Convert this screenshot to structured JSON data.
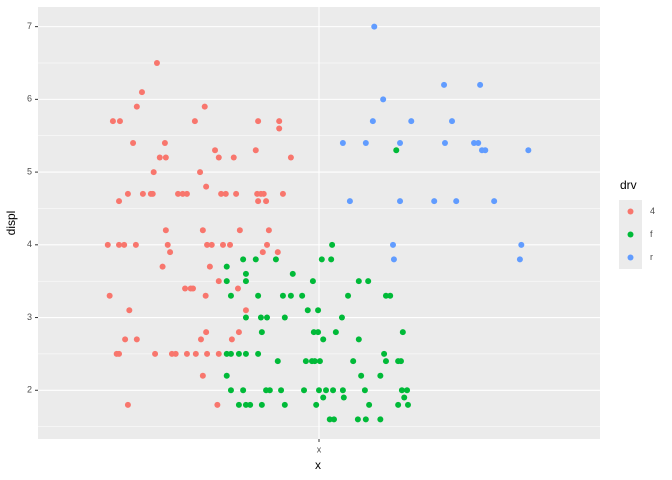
{
  "chart_data": {
    "type": "scatter",
    "x_label": "x",
    "y_label": "displ",
    "legend_title": "drv",
    "xlim": [
      0.4,
      1.6
    ],
    "xticks": [
      {
        "value": 1,
        "label": "x"
      }
    ],
    "ylim": [
      1.33,
      7.27
    ],
    "yticks": [
      2,
      3,
      4,
      5,
      6,
      7
    ],
    "grid": true,
    "legend_position": "right",
    "series": [
      {
        "name": "4",
        "color": "#F8766D",
        "x": [
          0.654,
          0.622,
          0.611,
          0.56,
          0.575,
          0.603,
          0.671,
          0.66,
          0.673,
          0.647,
          0.592,
          0.624,
          0.641,
          0.645,
          0.573,
          0.549,
          0.573,
          0.584,
          0.609,
          0.673,
          0.677,
          0.682,
          0.666,
          0.553,
          0.595,
          0.586,
          0.611,
          0.568,
          0.573,
          0.65,
          0.592,
          0.699,
          0.709,
          0.718,
          0.714,
          0.726,
          0.731,
          0.735,
          0.756,
          0.778,
          0.786,
          0.818,
          0.746,
          0.759,
          0.791,
          0.801,
          0.823,
          0.87,
          0.865,
          0.868,
          0.876,
          0.882,
          0.87,
          0.887,
          0.915,
          0.915,
          0.94,
          0.923,
          0.893,
          0.831,
          0.752,
          0.761,
          0.771,
          0.795,
          0.81,
          0.889,
          0.88,
          0.912,
          0.786,
          0.767,
          0.758,
          0.827,
          0.844,
          0.759,
          0.748,
          0.814,
          0.686,
          0.694,
          0.718,
          0.737,
          0.761,
          0.786,
          0.829,
          0.752,
          0.783
        ],
        "values": [
          6.5,
          6.1,
          5.9,
          5.7,
          5.7,
          5.4,
          5.4,
          5.2,
          5.2,
          5.0,
          4.7,
          4.7,
          4.7,
          4.7,
          4.6,
          4.0,
          4.0,
          4.0,
          4.0,
          4.2,
          4.0,
          3.9,
          3.7,
          3.3,
          3.1,
          2.7,
          2.7,
          2.5,
          2.5,
          2.5,
          1.8,
          4.7,
          4.7,
          4.7,
          3.4,
          3.4,
          3.4,
          5.7,
          5.9,
          5.3,
          5.2,
          5.2,
          5.0,
          4.8,
          4.7,
          4.7,
          4.7,
          5.7,
          5.3,
          4.7,
          4.7,
          4.7,
          4.6,
          4.6,
          5.7,
          5.6,
          5.2,
          4.7,
          4.2,
          4.2,
          4.2,
          4.0,
          4.0,
          4.0,
          4.0,
          4.0,
          3.9,
          3.9,
          3.5,
          3.7,
          3.3,
          3.4,
          3.1,
          2.8,
          2.7,
          2.7,
          2.5,
          2.5,
          2.5,
          2.5,
          2.5,
          2.5,
          2.8,
          2.2,
          1.8
        ]
      },
      {
        "name": "f",
        "color": "#00BA38",
        "x": [
          1.165,
          1.028,
          0.803,
          0.838,
          0.865,
          0.908,
          0.844,
          0.944,
          0.803,
          0.844,
          1.006,
          1.026,
          0.987,
          1.085,
          1.105,
          0.812,
          0.87,
          0.923,
          0.94,
          0.964,
          1.062,
          1.143,
          1.152,
          0.844,
          0.876,
          0.889,
          0.927,
          0.976,
          0.998,
          1.049,
          0.878,
          0.989,
          0.998,
          1.036,
          1.179,
          1.009,
          1.085,
          0.803,
          0.812,
          0.829,
          0.844,
          0.87,
          1.139,
          1.143,
          0.912,
          0.972,
          0.985,
          0.991,
          1.002,
          1.073,
          1.169,
          1.175,
          0.803,
          1.09,
          1.131,
          0.812,
          0.838,
          0.887,
          0.895,
          0.919,
          0.968,
          1.0,
          1.015,
          1.03,
          1.051,
          1.098,
          1.177,
          1.188,
          1.009,
          1.053,
          1.182,
          0.829,
          0.844,
          0.853,
          0.878,
          0.927,
          0.994,
          1.107,
          1.169,
          1.19,
          1.023,
          1.032,
          1.083,
          1.1,
          1.131
        ],
        "values": [
          5.3,
          4.0,
          3.7,
          3.8,
          3.8,
          3.8,
          3.6,
          3.6,
          3.5,
          3.5,
          3.8,
          3.8,
          3.5,
          3.5,
          3.5,
          3.3,
          3.3,
          3.3,
          3.3,
          3.3,
          3.3,
          3.3,
          3.3,
          3.0,
          3.0,
          3.0,
          3.0,
          3.1,
          3.1,
          3.0,
          2.8,
          2.8,
          2.8,
          2.8,
          2.8,
          2.7,
          2.7,
          2.5,
          2.5,
          2.5,
          2.5,
          2.5,
          2.5,
          2.4,
          2.4,
          2.4,
          2.4,
          2.4,
          2.4,
          2.4,
          2.4,
          2.4,
          2.2,
          2.2,
          2.2,
          2.0,
          2.0,
          2.0,
          2.0,
          2.0,
          2.0,
          2.0,
          2.0,
          2.0,
          2.0,
          2.0,
          2.0,
          2.0,
          1.9,
          1.9,
          1.9,
          1.8,
          1.8,
          1.8,
          1.8,
          1.8,
          1.8,
          1.8,
          1.8,
          1.8,
          1.6,
          1.6,
          1.6,
          1.6,
          1.6
        ]
      },
      {
        "name": "r",
        "color": "#619CFF",
        "x": [
          1.118,
          1.137,
          1.267,
          1.344,
          1.115,
          1.197,
          1.284,
          1.051,
          1.1,
          1.173,
          1.269,
          1.331,
          1.34,
          1.348,
          1.355,
          1.447,
          1.066,
          1.173,
          1.246,
          1.293,
          1.374,
          1.158,
          1.432,
          1.16,
          1.429
        ],
        "values": [
          7.0,
          6.0,
          6.2,
          6.2,
          5.7,
          5.7,
          5.7,
          5.4,
          5.4,
          5.4,
          5.4,
          5.4,
          5.4,
          5.3,
          5.3,
          5.3,
          4.6,
          4.6,
          4.6,
          4.6,
          4.6,
          4.0,
          4.0,
          3.8,
          3.8
        ]
      }
    ]
  }
}
